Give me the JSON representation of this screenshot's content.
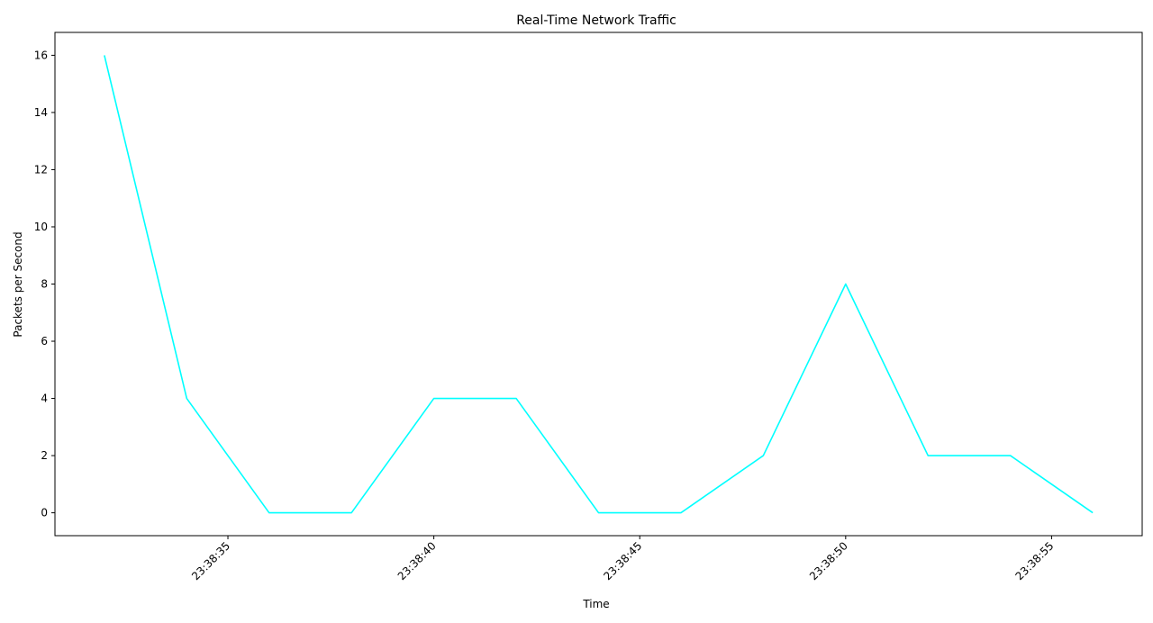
{
  "chart_data": {
    "type": "line",
    "title": "Real-Time Network Traffic",
    "xlabel": "Time",
    "ylabel": "Packets per Second",
    "x": [
      "23:38:32",
      "23:38:34",
      "23:38:36",
      "23:38:38",
      "23:38:40",
      "23:38:42",
      "23:38:44",
      "23:38:46",
      "23:38:48",
      "23:38:50",
      "23:38:52",
      "23:38:54",
      "23:38:56"
    ],
    "series": [
      {
        "values": [
          16,
          4,
          0,
          0,
          4,
          4,
          0,
          0,
          2,
          8,
          2,
          2,
          0
        ],
        "color": "#00ffff"
      }
    ],
    "xlim": [
      "23:38:30.8",
      "23:38:57.2"
    ],
    "ylim": [
      -0.8,
      16.8
    ],
    "x_ticks": [
      "23:38:35",
      "23:38:40",
      "23:38:45",
      "23:38:50",
      "23:38:55"
    ],
    "y_ticks": [
      0,
      2,
      4,
      6,
      8,
      10,
      12,
      14,
      16
    ],
    "grid": false,
    "legend": "none"
  }
}
